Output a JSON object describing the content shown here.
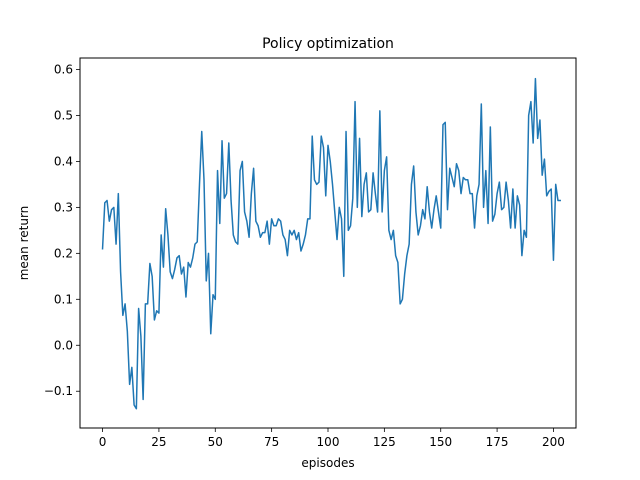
{
  "chart_data": {
    "type": "line",
    "title": "Policy optimization",
    "xlabel": "episodes",
    "ylabel": "mean return",
    "xlim": [
      -10,
      210
    ],
    "ylim": [
      -0.18,
      0.625
    ],
    "grid": false,
    "legend": "none",
    "x_ticks": [
      0,
      25,
      50,
      75,
      100,
      125,
      150,
      175,
      200
    ],
    "x_tick_labels": [
      "0",
      "25",
      "50",
      "75",
      "100",
      "125",
      "150",
      "175",
      "200"
    ],
    "y_ticks": [
      -0.1,
      0.0,
      0.1,
      0.2,
      0.3,
      0.4,
      0.5,
      0.6
    ],
    "y_tick_labels": [
      "−0.1",
      "0.0",
      "0.1",
      "0.2",
      "0.3",
      "0.4",
      "0.5",
      "0.6"
    ],
    "series": [
      {
        "color": "#1f77b4",
        "x_start": 0,
        "x_step": 1,
        "values": [
          0.21,
          0.31,
          0.315,
          0.27,
          0.295,
          0.3,
          0.22,
          0.33,
          0.16,
          0.065,
          0.09,
          0.03,
          -0.085,
          -0.048,
          -0.13,
          -0.138,
          0.08,
          0.02,
          -0.118,
          0.09,
          0.09,
          0.178,
          0.15,
          0.055,
          0.075,
          0.07,
          0.24,
          0.17,
          0.297,
          0.24,
          0.16,
          0.145,
          0.165,
          0.19,
          0.195,
          0.155,
          0.17,
          0.105,
          0.18,
          0.17,
          0.19,
          0.22,
          0.225,
          0.35,
          0.465,
          0.36,
          0.14,
          0.2,
          0.025,
          0.11,
          0.1,
          0.38,
          0.265,
          0.445,
          0.32,
          0.33,
          0.44,
          0.315,
          0.24,
          0.225,
          0.22,
          0.38,
          0.4,
          0.29,
          0.27,
          0.235,
          0.33,
          0.385,
          0.27,
          0.26,
          0.235,
          0.245,
          0.245,
          0.27,
          0.22,
          0.275,
          0.26,
          0.26,
          0.275,
          0.27,
          0.24,
          0.23,
          0.195,
          0.25,
          0.24,
          0.25,
          0.23,
          0.245,
          0.205,
          0.22,
          0.24,
          0.275,
          0.275,
          0.455,
          0.36,
          0.35,
          0.355,
          0.455,
          0.43,
          0.325,
          0.435,
          0.4,
          0.35,
          0.29,
          0.23,
          0.3,
          0.275,
          0.15,
          0.465,
          0.25,
          0.26,
          0.32,
          0.53,
          0.3,
          0.45,
          0.28,
          0.35,
          0.375,
          0.29,
          0.295,
          0.375,
          0.33,
          0.29,
          0.51,
          0.29,
          0.38,
          0.41,
          0.25,
          0.23,
          0.25,
          0.195,
          0.18,
          0.09,
          0.1,
          0.155,
          0.195,
          0.22,
          0.35,
          0.39,
          0.29,
          0.24,
          0.26,
          0.295,
          0.275,
          0.345,
          0.29,
          0.255,
          0.295,
          0.325,
          0.29,
          0.255,
          0.48,
          0.485,
          0.295,
          0.385,
          0.365,
          0.345,
          0.395,
          0.38,
          0.33,
          0.365,
          0.36,
          0.36,
          0.33,
          0.33,
          0.255,
          0.325,
          0.35,
          0.525,
          0.3,
          0.38,
          0.265,
          0.475,
          0.27,
          0.285,
          0.33,
          0.355,
          0.295,
          0.3,
          0.355,
          0.315,
          0.255,
          0.34,
          0.255,
          0.325,
          0.305,
          0.195,
          0.25,
          0.235,
          0.5,
          0.53,
          0.44,
          0.58,
          0.45,
          0.49,
          0.37,
          0.405,
          0.325,
          0.335,
          0.34,
          0.185,
          0.35,
          0.315,
          0.315
        ]
      }
    ]
  }
}
